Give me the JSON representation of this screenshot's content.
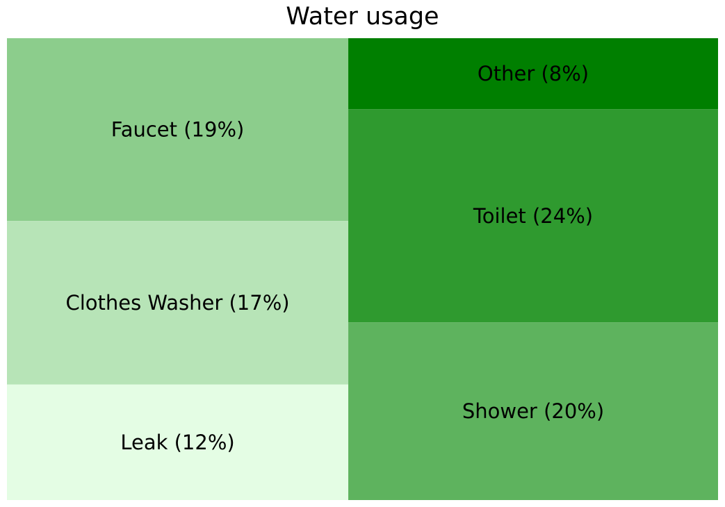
{
  "chart_data": {
    "type": "treemap",
    "title": "Water usage",
    "items": [
      {
        "label": "Faucet (19%)",
        "name": "Faucet",
        "value": 19,
        "color": "#8ccd8c"
      },
      {
        "label": "Clothes Washer (17%)",
        "name": "Clothes Washer",
        "value": 17,
        "color": "#b7e4b7"
      },
      {
        "label": "Leak (12%)",
        "name": "Leak",
        "value": 12,
        "color": "#e4fde4"
      },
      {
        "label": "Other (8%)",
        "name": "Other",
        "value": 8,
        "color": "#007f00"
      },
      {
        "label": "Toilet (24%)",
        "name": "Toilet",
        "value": 24,
        "color": "#2f9a2f"
      },
      {
        "label": "Shower (20%)",
        "name": "Shower",
        "value": 20,
        "color": "#5eb35e"
      }
    ]
  }
}
